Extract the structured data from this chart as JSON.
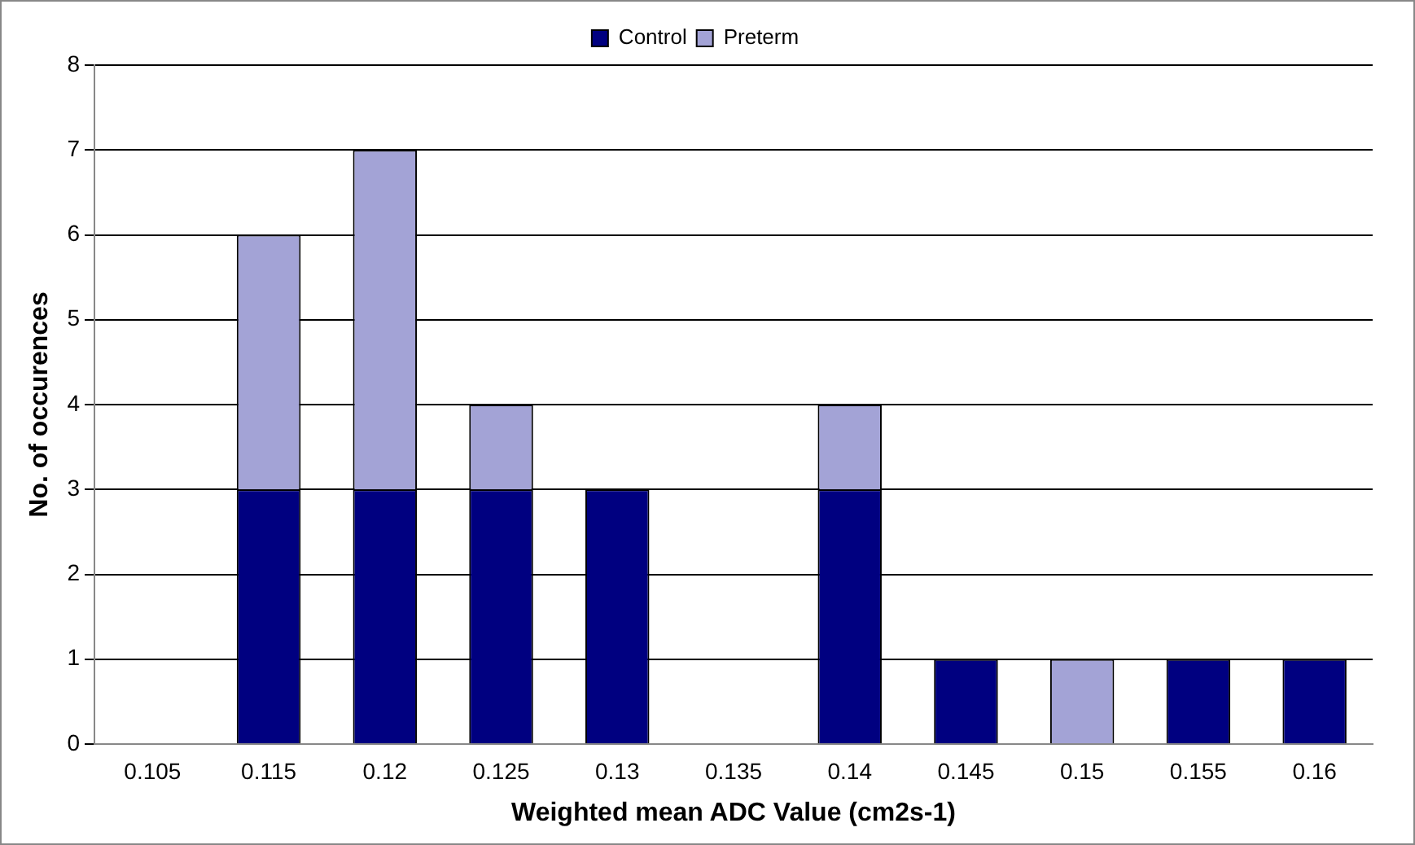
{
  "chart_data": {
    "type": "bar",
    "stacked": true,
    "xlabel": "Weighted mean ADC Value (cm2s-1)",
    "ylabel": "No. of occurences",
    "categories": [
      "0.105",
      "0.115",
      "0.12",
      "0.125",
      "0.13",
      "0.135",
      "0.14",
      "0.145",
      "0.15",
      "0.155",
      "0.16"
    ],
    "series": [
      {
        "name": "Control",
        "color": "#000080",
        "values": [
          0,
          3,
          3,
          3,
          3,
          0,
          3,
          1,
          0,
          1,
          1
        ]
      },
      {
        "name": "Preterm",
        "color": "#a3a3d6",
        "values": [
          0,
          3,
          4,
          1,
          0,
          0,
          1,
          0,
          1,
          0,
          0
        ]
      }
    ],
    "ylim": [
      0,
      8
    ],
    "yticks": [
      0,
      1,
      2,
      3,
      4,
      5,
      6,
      7,
      8
    ],
    "grid": "y",
    "legend": "top"
  }
}
